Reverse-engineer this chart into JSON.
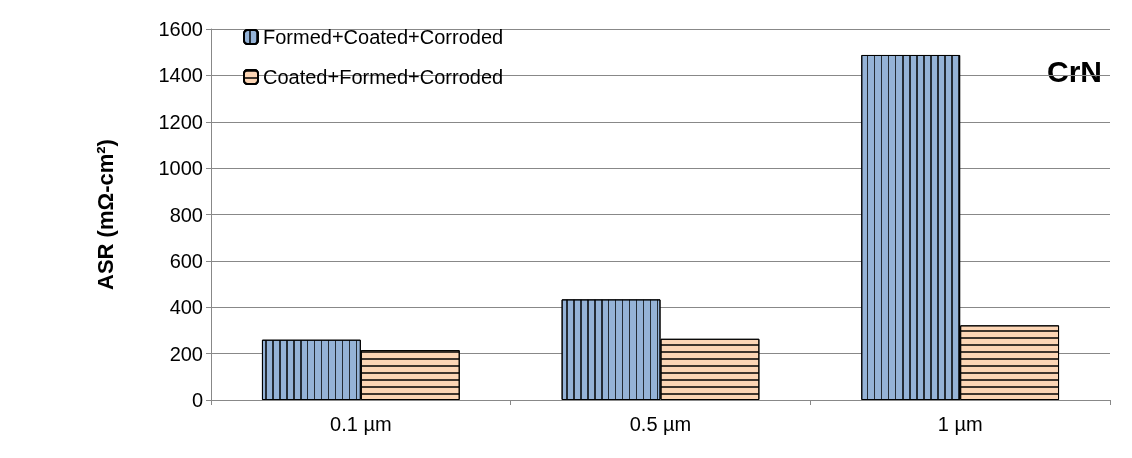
{
  "chart_data": {
    "type": "bar",
    "ylabel": "ASR (mΩ-cm²)",
    "categories": [
      "0.1 µm",
      "0.5 µm",
      "1 µm"
    ],
    "series": [
      {
        "name": "Formed+Coated+Corroded",
        "color": "#95b3d7",
        "values": [
          260,
          434,
          1488
        ]
      },
      {
        "name": "Coated+Formed+Corroded",
        "color": "#fcd5b5",
        "values": [
          215,
          264,
          322
        ]
      }
    ],
    "ylim": [
      0,
      1600
    ],
    "yticks": [
      0,
      200,
      400,
      600,
      800,
      1000,
      1200,
      1400,
      1600
    ],
    "grid": "y",
    "legend": "top left",
    "annotations": [
      "CrN"
    ]
  }
}
